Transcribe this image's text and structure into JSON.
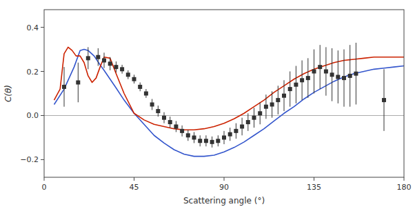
{
  "chart_data": {
    "type": "line",
    "xlabel": "Scattering angle (°)",
    "ylabel": "C(θ)",
    "xlim": [
      0,
      180
    ],
    "ylim": [
      -0.28,
      0.48
    ],
    "xticks": [
      0,
      45,
      90,
      135,
      180
    ],
    "yticks": [
      {
        "value": -0.2,
        "label": "−0.2"
      },
      {
        "value": 0.0,
        "label": "0.0"
      },
      0.2,
      0.4
    ],
    "grid": false,
    "hline": {
      "y": 0.0,
      "color": "#aaaaaa"
    },
    "series": [
      {
        "type": "line",
        "color": "#3355cc",
        "x": [
          5,
          10,
          15,
          18,
          20,
          22,
          25,
          28,
          30,
          33,
          36,
          40,
          45,
          50,
          55,
          60,
          65,
          70,
          75,
          80,
          85,
          90,
          95,
          100,
          105,
          110,
          115,
          120,
          125,
          130,
          135,
          140,
          145,
          150,
          155,
          160,
          165,
          170,
          175,
          180
        ],
        "values": [
          0.05,
          0.12,
          0.22,
          0.295,
          0.3,
          0.295,
          0.27,
          0.23,
          0.205,
          0.165,
          0.125,
          0.07,
          0.01,
          -0.04,
          -0.09,
          -0.125,
          -0.155,
          -0.175,
          -0.185,
          -0.185,
          -0.18,
          -0.165,
          -0.145,
          -0.12,
          -0.09,
          -0.06,
          -0.025,
          0.01,
          0.04,
          0.075,
          0.105,
          0.13,
          0.155,
          0.175,
          0.19,
          0.2,
          0.21,
          0.215,
          0.22,
          0.225
        ]
      },
      {
        "type": "line",
        "color": "#cc2200",
        "x": [
          5,
          8,
          10,
          12,
          14,
          16,
          18,
          20,
          22,
          24,
          26,
          28,
          30,
          33,
          36,
          40,
          45,
          50,
          55,
          60,
          65,
          70,
          75,
          80,
          85,
          90,
          95,
          100,
          105,
          110,
          115,
          120,
          125,
          130,
          135,
          140,
          145,
          150,
          155,
          160,
          165,
          170,
          175,
          180
        ],
        "values": [
          0.07,
          0.12,
          0.28,
          0.31,
          0.295,
          0.27,
          0.27,
          0.24,
          0.18,
          0.15,
          0.17,
          0.22,
          0.265,
          0.26,
          0.19,
          0.1,
          0.01,
          -0.02,
          -0.04,
          -0.05,
          -0.06,
          -0.065,
          -0.065,
          -0.06,
          -0.05,
          -0.035,
          -0.015,
          0.01,
          0.04,
          0.07,
          0.105,
          0.135,
          0.165,
          0.19,
          0.21,
          0.225,
          0.24,
          0.25,
          0.255,
          0.26,
          0.265,
          0.265,
          0.265,
          0.265
        ]
      },
      {
        "type": "scatter",
        "color": "#333333",
        "marker": "square",
        "x": [
          10,
          17,
          22,
          27,
          30,
          33,
          36,
          39,
          42,
          45,
          48,
          51,
          54,
          57,
          60,
          63,
          66,
          69,
          72,
          75,
          78,
          81,
          84,
          87,
          90,
          93,
          96,
          99,
          102,
          105,
          108,
          111,
          114,
          117,
          120,
          123,
          126,
          129,
          132,
          135,
          138,
          141,
          144,
          147,
          150,
          153,
          156,
          170
        ],
        "values": [
          0.13,
          0.15,
          0.26,
          0.265,
          0.25,
          0.235,
          0.22,
          0.21,
          0.185,
          0.165,
          0.13,
          0.1,
          0.05,
          0.02,
          -0.01,
          -0.03,
          -0.05,
          -0.07,
          -0.09,
          -0.1,
          -0.115,
          -0.115,
          -0.12,
          -0.115,
          -0.1,
          -0.085,
          -0.07,
          -0.05,
          -0.03,
          -0.01,
          0.01,
          0.04,
          0.05,
          0.07,
          0.09,
          0.12,
          0.14,
          0.16,
          0.17,
          0.2,
          0.22,
          0.2,
          0.185,
          0.175,
          0.17,
          0.18,
          0.19,
          0.07
        ],
        "errors": [
          0.09,
          0.09,
          0.05,
          0.04,
          0.035,
          0.03,
          0.025,
          0.02,
          0.02,
          0.02,
          0.02,
          0.02,
          0.025,
          0.025,
          0.025,
          0.025,
          0.025,
          0.025,
          0.025,
          0.025,
          0.025,
          0.025,
          0.025,
          0.025,
          0.03,
          0.03,
          0.035,
          0.04,
          0.04,
          0.045,
          0.05,
          0.055,
          0.06,
          0.065,
          0.07,
          0.08,
          0.085,
          0.09,
          0.09,
          0.1,
          0.1,
          0.11,
          0.12,
          0.12,
          0.13,
          0.14,
          0.14,
          0.14
        ]
      }
    ]
  }
}
